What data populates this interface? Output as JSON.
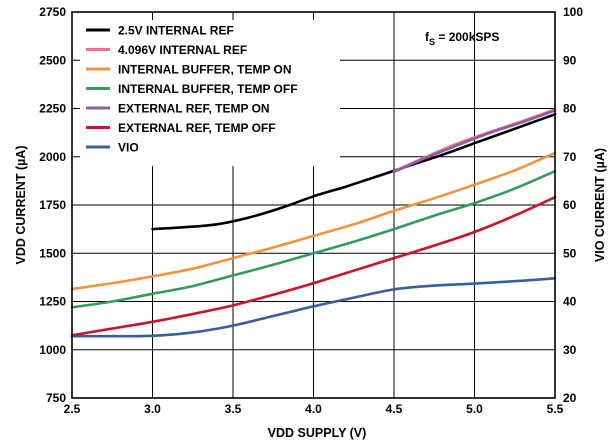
{
  "chart_data": {
    "type": "line",
    "xlabel": "VDD SUPPLY (V)",
    "ylabel": "VDD CURRENT (µA)",
    "y2label": "VIO CURRENT (µA)",
    "xlim": [
      2.5,
      5.5
    ],
    "ylim": [
      750,
      2750
    ],
    "y2lim": [
      20,
      100
    ],
    "xticks": [
      "2.5",
      "3.0",
      "3.5",
      "4.0",
      "4.5",
      "5.0",
      "5.5"
    ],
    "yticks": [
      "750",
      "1000",
      "1250",
      "1500",
      "1750",
      "2000",
      "2250",
      "2500",
      "2750"
    ],
    "y2ticks": [
      "20",
      "30",
      "40",
      "50",
      "60",
      "70",
      "80",
      "90",
      "100"
    ],
    "grid": true,
    "legend_position": "top-left",
    "annotation": {
      "main": "f",
      "sub": "S",
      "rest": " = 200kSPS"
    },
    "series": [
      {
        "name": "2.5V INTERNAL REF",
        "color": "#000000",
        "axis": "left",
        "x": [
          3.0,
          3.2,
          3.4,
          3.6,
          3.8,
          4.0,
          4.2,
          4.4,
          4.6,
          4.8,
          5.0,
          5.2,
          5.5
        ],
        "y": [
          1625,
          1635,
          1650,
          1685,
          1735,
          1795,
          1845,
          1900,
          1955,
          2010,
          2070,
          2130,
          2220
        ]
      },
      {
        "name": "4.096V INTERNAL REF",
        "color": "#e8758a",
        "axis": "left",
        "x": [
          4.5,
          4.7,
          4.9,
          5.1,
          5.3,
          5.5
        ],
        "y": [
          1925,
          2000,
          2070,
          2130,
          2185,
          2245
        ]
      },
      {
        "name": "INTERNAL BUFFER, TEMP ON",
        "color": "#f5923e",
        "axis": "left",
        "x": [
          2.5,
          2.75,
          3.0,
          3.25,
          3.5,
          3.75,
          4.0,
          4.25,
          4.5,
          4.75,
          5.0,
          5.25,
          5.5
        ],
        "y": [
          1315,
          1345,
          1380,
          1420,
          1475,
          1530,
          1590,
          1650,
          1720,
          1785,
          1855,
          1930,
          2020
        ]
      },
      {
        "name": "INTERNAL BUFFER, TEMP OFF",
        "color": "#2f9e5b",
        "axis": "left",
        "x": [
          2.5,
          2.75,
          3.0,
          3.25,
          3.5,
          3.75,
          4.0,
          4.25,
          4.5,
          4.75,
          5.0,
          5.25,
          5.5
        ],
        "y": [
          1220,
          1250,
          1290,
          1330,
          1385,
          1440,
          1500,
          1560,
          1625,
          1695,
          1760,
          1835,
          1925
        ]
      },
      {
        "name": "EXTERNAL REF, TEMP ON",
        "color": "#8e5b9c",
        "axis": "left",
        "x": [
          4.5,
          4.7,
          4.9,
          5.1,
          5.3,
          5.5
        ],
        "y": [
          1922,
          1995,
          2062,
          2125,
          2180,
          2240
        ]
      },
      {
        "name": "EXTERNAL REF, TEMP OFF",
        "color": "#d0112b",
        "axis": "left",
        "x": [
          2.5,
          2.75,
          3.0,
          3.25,
          3.5,
          3.75,
          4.0,
          4.25,
          4.5,
          4.75,
          5.0,
          5.25,
          5.5
        ],
        "y": [
          1075,
          1110,
          1145,
          1185,
          1230,
          1285,
          1345,
          1410,
          1475,
          1540,
          1610,
          1695,
          1790
        ]
      },
      {
        "name": "VIO",
        "color": "#3a5fa0",
        "axis": "right",
        "x": [
          2.5,
          2.75,
          3.0,
          3.25,
          3.5,
          3.75,
          4.0,
          4.25,
          4.5,
          4.75,
          5.0,
          5.25,
          5.5
        ],
        "y": [
          32.8,
          32.8,
          32.9,
          33.6,
          35.0,
          37.0,
          39.0,
          40.8,
          42.5,
          43.3,
          43.7,
          44.2,
          44.8
        ]
      }
    ]
  }
}
